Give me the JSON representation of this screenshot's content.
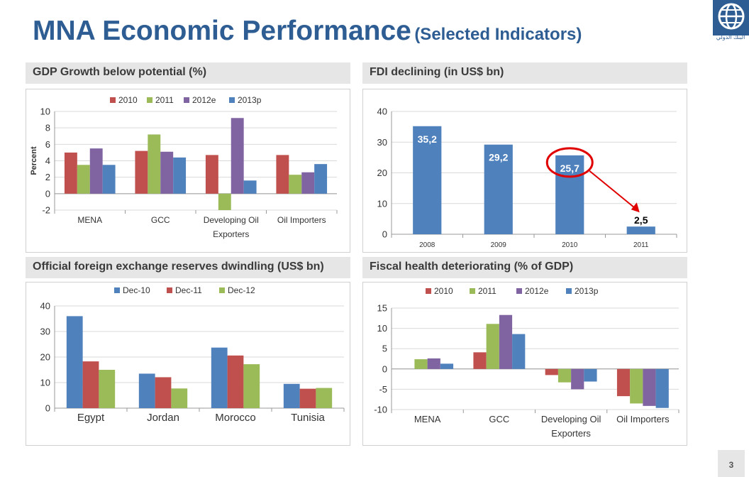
{
  "title": {
    "main": "MNA Economic Performance",
    "sub": "(Selected Indicators)"
  },
  "logo": {
    "icon": "globe-icon",
    "text": "البنك الدولي"
  },
  "page_number": "3",
  "panels": {
    "gdp": {
      "header": "GDP Growth below potential (%)"
    },
    "fdi": {
      "header": "FDI declining (in US$ bn)"
    },
    "reserves": {
      "header": "Official foreign exchange reserves dwindling (US$ bn)"
    },
    "fiscal": {
      "header": "Fiscal health deteriorating (% of GDP)"
    }
  },
  "chart_data": [
    {
      "id": "gdp",
      "type": "bar",
      "categories": [
        [
          "MENA"
        ],
        [
          "GCC"
        ],
        [
          "Developing Oil",
          "Exporters"
        ],
        [
          "Oil Importers"
        ]
      ],
      "series": [
        {
          "name": "2010",
          "color": "#c0504d",
          "values": [
            5.0,
            5.2,
            4.7,
            4.7
          ]
        },
        {
          "name": "2011",
          "color": "#9bbb59",
          "values": [
            3.5,
            7.2,
            -2.0,
            2.3
          ]
        },
        {
          "name": "2012e",
          "color": "#8064a2",
          "values": [
            5.5,
            5.1,
            9.2,
            2.6
          ]
        },
        {
          "name": "2013p",
          "color": "#4f81bd",
          "values": [
            3.5,
            4.4,
            1.6,
            3.6
          ]
        }
      ],
      "ylabel": "Percent",
      "ylim": [
        -2,
        10
      ],
      "yticks": [
        "-2",
        "0",
        "2",
        "4",
        "6",
        "8",
        "10"
      ],
      "grid": true,
      "legend": "top"
    },
    {
      "id": "fdi",
      "type": "bar",
      "categories": [
        [
          "2008"
        ],
        [
          "2009"
        ],
        [
          "2010"
        ],
        [
          "2011"
        ]
      ],
      "series": [
        {
          "color": "#4f81bd",
          "values": [
            35.2,
            29.2,
            25.7,
            2.5
          ]
        }
      ],
      "data_labels": [
        "35,2",
        "29,2",
        "25,7",
        "2,5"
      ],
      "ylim": [
        0,
        40
      ],
      "yticks": [
        "0",
        "10",
        "20",
        "30",
        "40"
      ],
      "grid": true,
      "legend": "none",
      "annotation": "red circle around 2010 bar with arrow pointing to 2011 bar"
    },
    {
      "id": "reserves",
      "type": "bar",
      "categories": [
        [
          "Egypt"
        ],
        [
          "Jordan"
        ],
        [
          "Morocco"
        ],
        [
          "Tunisia"
        ]
      ],
      "series": [
        {
          "name": "Dec-10",
          "color": "#4f81bd",
          "values": [
            36.0,
            13.5,
            23.7,
            9.5
          ]
        },
        {
          "name": "Dec-11",
          "color": "#c0504d",
          "values": [
            18.3,
            12.1,
            20.6,
            7.6
          ]
        },
        {
          "name": "Dec-12",
          "color": "#9bbb59",
          "values": [
            15.0,
            7.7,
            17.2,
            7.9
          ]
        }
      ],
      "ylim": [
        0,
        40
      ],
      "yticks": [
        "0",
        "10",
        "20",
        "30",
        "40"
      ],
      "grid": true,
      "legend": "top"
    },
    {
      "id": "fiscal",
      "type": "bar",
      "categories": [
        [
          "MENA"
        ],
        [
          "GCC"
        ],
        [
          "Developing Oil",
          "Exporters"
        ],
        [
          "Oil Importers"
        ]
      ],
      "series": [
        {
          "name": "2010",
          "color": "#c0504d",
          "values": [
            0,
            4.1,
            -1.5,
            -6.7
          ]
        },
        {
          "name": "2011",
          "color": "#9bbb59",
          "values": [
            2.4,
            11.1,
            -3.3,
            -8.5
          ]
        },
        {
          "name": "2012e",
          "color": "#8064a2",
          "values": [
            2.6,
            13.3,
            -5.0,
            -9.1
          ]
        },
        {
          "name": "2013p",
          "color": "#4f81bd",
          "values": [
            1.3,
            8.6,
            -3.1,
            -9.6
          ]
        }
      ],
      "ylim": [
        -10,
        15
      ],
      "yticks": [
        "-10",
        "-5",
        "0",
        "5",
        "10",
        "15"
      ],
      "grid": true,
      "legend": "top"
    }
  ]
}
